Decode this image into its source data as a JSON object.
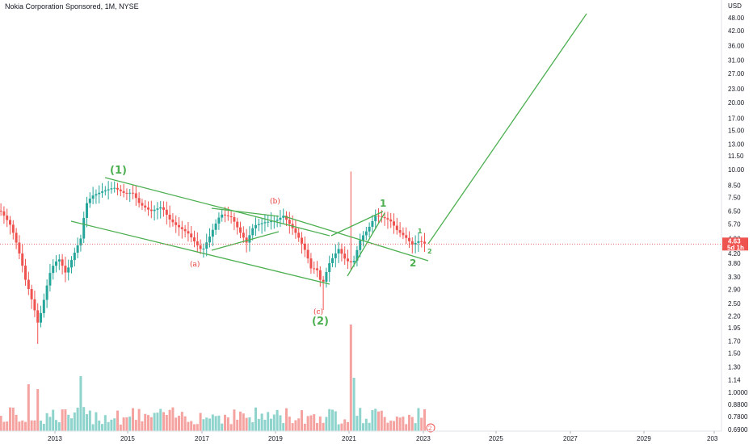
{
  "title": "Nokia Corporation Sponsored, 1M, NYSE",
  "currency": "USD",
  "price_tag": {
    "price": "4.63",
    "countdown": "5d 1h"
  },
  "colors": {
    "up": "#26a69a",
    "down": "#ef5350",
    "vol_up": "#8fd4cc",
    "vol_down": "#f5a3a1",
    "wave": "#4caf50",
    "abc": "#e53935",
    "price_line": "#ef5350"
  },
  "chart_data": {
    "type": "candlestick",
    "title": "Nokia Corporation Sponsored, 1M, NYSE",
    "scale": "log",
    "y_ticks": [
      "48.00",
      "42.00",
      "36.00",
      "31.00",
      "27.00",
      "23.00",
      "20.00",
      "17.00",
      "15.00",
      "13.00",
      "11.50",
      "10.00",
      "8.50",
      "7.50",
      "6.50",
      "5.70",
      "4.90",
      "4.20",
      "3.80",
      "3.30",
      "2.90",
      "2.50",
      "2.20",
      "1.95",
      "1.70",
      "1.50",
      "1.30",
      "1.14",
      "1.0000",
      "0.8800",
      "0.7800",
      "0.6900"
    ],
    "x_ticks": [
      "2013",
      "2015",
      "2017",
      "2019",
      "2021",
      "2023",
      "2025",
      "2027",
      "2029",
      "203"
    ],
    "last_price": 4.63,
    "candles_sample": [
      {
        "t": 2011.6,
        "o": 6.4,
        "h": 6.9,
        "l": 5.6,
        "c": 5.8
      },
      {
        "t": 2012.0,
        "o": 5.5,
        "h": 5.9,
        "l": 3.9,
        "c": 4.2
      },
      {
        "t": 2012.5,
        "o": 2.6,
        "h": 3.2,
        "l": 1.65,
        "c": 2.1
      },
      {
        "t": 2013.0,
        "o": 3.2,
        "h": 4.3,
        "l": 3.0,
        "c": 4.0
      },
      {
        "t": 2013.7,
        "o": 4.8,
        "h": 7.3,
        "l": 4.6,
        "c": 7.2
      },
      {
        "t": 2014.5,
        "o": 7.9,
        "h": 8.5,
        "l": 7.4,
        "c": 8.1
      },
      {
        "t": 2015.5,
        "o": 7.1,
        "h": 7.4,
        "l": 6.2,
        "c": 6.5
      },
      {
        "t": 2016.5,
        "o": 5.0,
        "h": 5.3,
        "l": 4.4,
        "c": 4.7
      },
      {
        "t": 2017.5,
        "o": 6.3,
        "h": 6.6,
        "l": 5.9,
        "c": 6.1
      },
      {
        "t": 2018.5,
        "o": 5.6,
        "h": 6.0,
        "l": 5.3,
        "c": 5.8
      },
      {
        "t": 2019.0,
        "o": 6.0,
        "h": 6.5,
        "l": 5.7,
        "c": 5.9
      },
      {
        "t": 2019.8,
        "o": 3.8,
        "h": 4.3,
        "l": 3.2,
        "c": 3.5
      },
      {
        "t": 2020.2,
        "o": 3.1,
        "h": 3.3,
        "l": 2.34,
        "c": 3.0
      },
      {
        "t": 2021.0,
        "o": 4.0,
        "h": 9.8,
        "l": 3.9,
        "c": 4.2
      },
      {
        "t": 2021.6,
        "o": 5.8,
        "h": 6.3,
        "l": 5.5,
        "c": 6.0
      },
      {
        "t": 2022.5,
        "o": 5.2,
        "h": 5.4,
        "l": 4.4,
        "c": 4.7
      },
      {
        "t": 2023.0,
        "o": 4.9,
        "h": 5.2,
        "l": 4.5,
        "c": 4.63
      }
    ],
    "labels": {
      "wave_1_big": "(1)",
      "wave_2_big": "(2)",
      "sub_a": "(a)",
      "sub_b": "(b)",
      "sub_c": "(c)",
      "wave_1": "1",
      "wave_2": "2",
      "mini_1": "1",
      "mini_2": "2"
    },
    "volume_badge": "2"
  }
}
